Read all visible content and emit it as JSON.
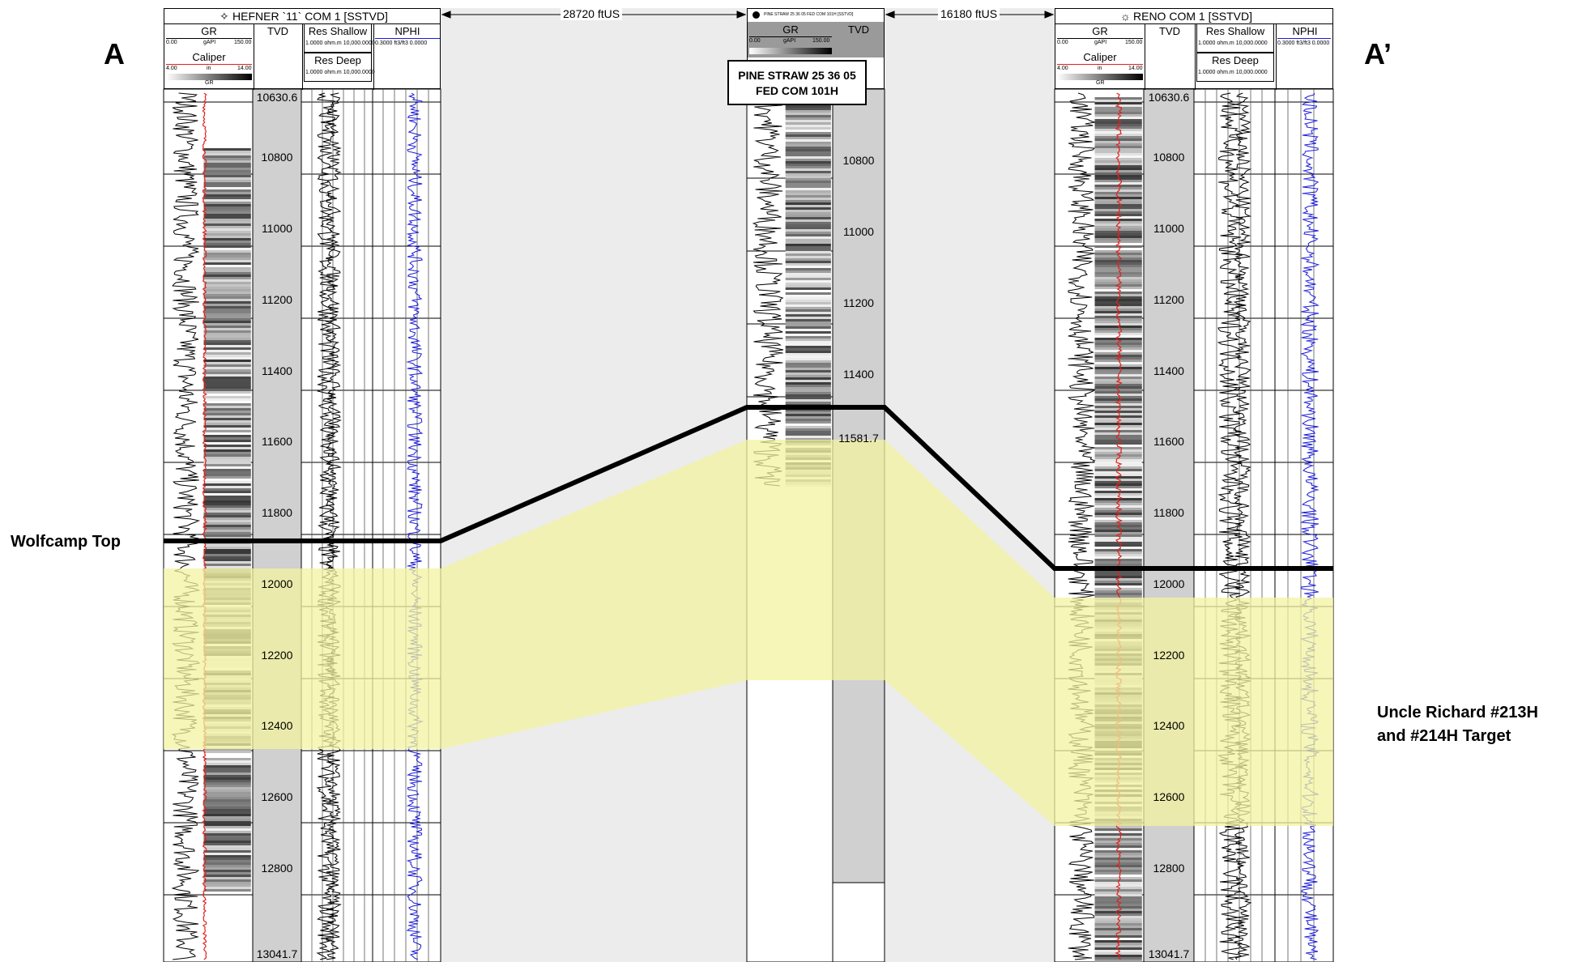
{
  "section_labels": {
    "start": "A",
    "end": "A’"
  },
  "annotations": {
    "wolfcamp_top": "Wolfcamp Top",
    "target_line1": "Uncle Richard #213H",
    "target_line2": "and #214H Target"
  },
  "wells": [
    {
      "title": "HEFNER `11` COM 1 [SSTVD]",
      "col_gr": "GR",
      "col_tvd": "TVD",
      "col_res_shallow": "Res Shallow",
      "col_res_deep": "Res Deep",
      "col_nphi": "NPHI",
      "gr_scale": [
        "0.00",
        "gAPI",
        "150.00"
      ],
      "caliper": "Caliper",
      "caliper_scale": [
        "4.00",
        "in",
        "14.00"
      ],
      "gr_bar": "GR",
      "res_scale": "1.0000 ohm.m 10,000.0000",
      "nphi_scale": "0.3000 ft3/ft3 0.0000",
      "depth_labels": [
        "10630.6",
        "10800",
        "11000",
        "11200",
        "11400",
        "11600",
        "11800",
        "12000",
        "12200",
        "12400",
        "12600",
        "12800",
        "13041.7"
      ]
    },
    {
      "title": "PINE STRAW 25 36 05 FED COM 101H [SSTVD]",
      "col_gr": "GR",
      "col_tvd": "TVD",
      "gr_scale": [
        "0.00",
        "gAPI",
        "150.00"
      ],
      "callout_line1": "PINE STRAW 25 36 05",
      "callout_line2": "FED COM 101H",
      "depth_labels": [
        "10800",
        "11000",
        "11200",
        "11400",
        "11581.7"
      ]
    },
    {
      "title": "RENO COM 1 [SSTVD]",
      "col_gr": "GR",
      "col_tvd": "TVD",
      "col_res_shallow": "Res Shallow",
      "col_res_deep": "Res Deep",
      "col_nphi": "NPHI",
      "gr_scale": [
        "0.00",
        "gAPI",
        "150.00"
      ],
      "caliper": "Caliper",
      "caliper_scale": [
        "4.00",
        "in",
        "14.00"
      ],
      "gr_bar": "GR",
      "res_scale": "1.0000 ohm.m 10,000.0000",
      "nphi_scale": "0.3000 ft3/ft3 0.0000",
      "depth_labels": [
        "10630.6",
        "10800",
        "11000",
        "11200",
        "11400",
        "11600",
        "11800",
        "12000",
        "12200",
        "12400",
        "12600",
        "12800",
        "13041.7"
      ]
    }
  ],
  "distances": [
    "28720 ftUS",
    "16180 ftUS"
  ],
  "colors": {
    "target_zone": "#f3f3a0",
    "gap_fill": "#ececec",
    "track_gray": "#d0d0d0",
    "nphi_curve": "#1a1adc",
    "caliper_curve": "#e0201c"
  }
}
